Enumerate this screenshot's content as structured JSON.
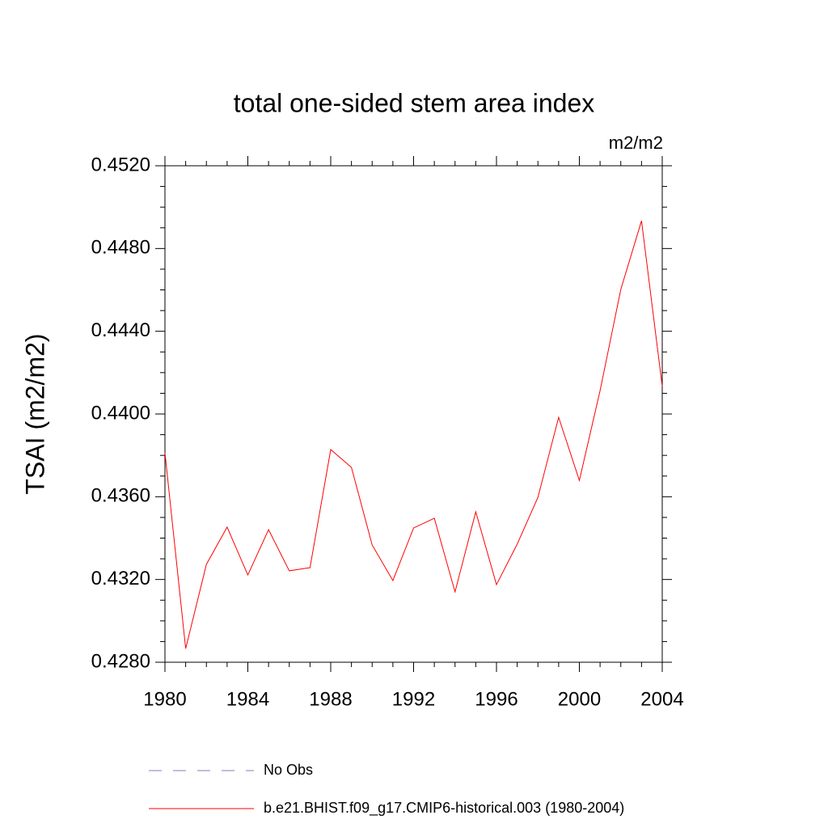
{
  "chart_data": {
    "type": "line",
    "title": "total one-sided stem area index",
    "units": "m2/m2",
    "ylabel": "TSAI  (m2/m2)",
    "x": [
      1980,
      1981,
      1982,
      1983,
      1984,
      1985,
      1986,
      1987,
      1988,
      1989,
      1990,
      1991,
      1992,
      1993,
      1994,
      1995,
      1996,
      1997,
      1998,
      1999,
      2000,
      2001,
      2002,
      2003,
      2004
    ],
    "xlim": [
      1980,
      2004
    ],
    "xticks": [
      1980,
      1984,
      1988,
      1992,
      1996,
      2000,
      2004
    ],
    "ylim": [
      0.428,
      0.452
    ],
    "yticks": [
      {
        "value": 0.428,
        "label": "0.4280"
      },
      {
        "value": 0.432,
        "label": "0.4320"
      },
      {
        "value": 0.436,
        "label": "0.4360"
      },
      {
        "value": 0.44,
        "label": "0.4400"
      },
      {
        "value": 0.444,
        "label": "0.4440"
      },
      {
        "value": 0.448,
        "label": "0.4480"
      },
      {
        "value": 0.452,
        "label": "0.4520"
      }
    ],
    "series": [
      {
        "name": "No Obs",
        "color": "#7f7fbf",
        "dashed": true,
        "values": [
          null,
          null,
          null,
          null,
          null,
          null,
          null,
          null,
          null,
          null,
          null,
          null,
          null,
          null,
          null,
          null,
          null,
          null,
          null,
          null,
          null,
          null,
          null,
          null,
          null
        ]
      },
      {
        "name": "b.e21.BHIST.f09_g17.CMIP6-historical.003 (1980-2004)",
        "color": "#ff0000",
        "dashed": false,
        "values": [
          0.43812,
          0.42866,
          0.43273,
          0.43453,
          0.43222,
          0.43441,
          0.43242,
          0.43257,
          0.43828,
          0.43742,
          0.43367,
          0.43195,
          0.43449,
          0.43496,
          0.4314,
          0.43527,
          0.43175,
          0.43371,
          0.43597,
          0.43984,
          0.43679,
          0.44113,
          0.44602,
          0.44934,
          0.44133
        ]
      }
    ]
  }
}
